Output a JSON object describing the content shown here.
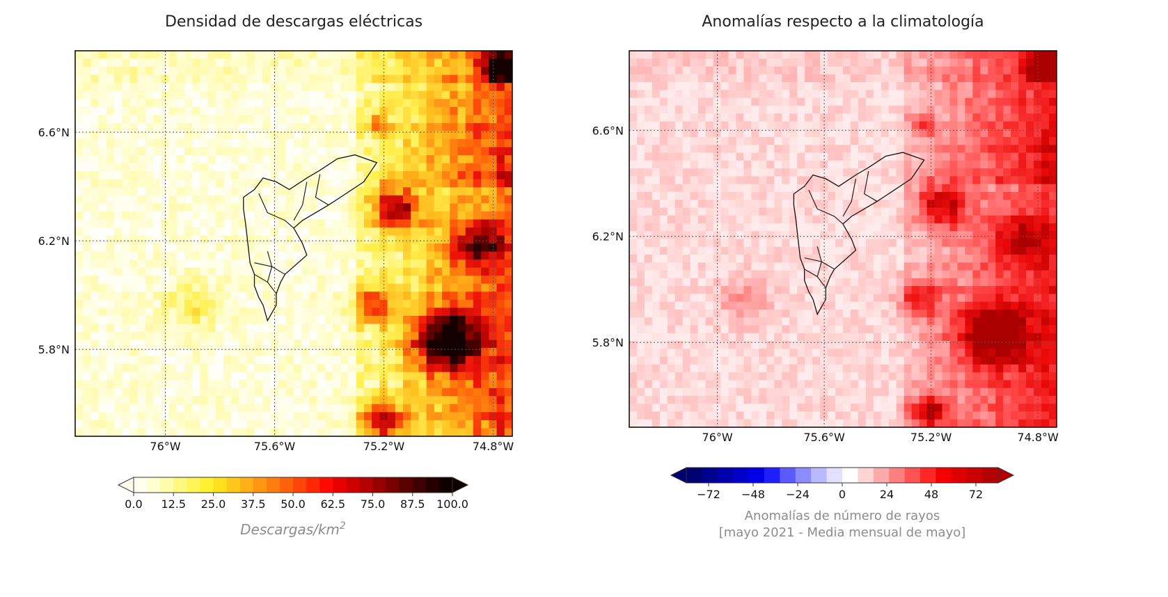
{
  "chart_data": [
    {
      "type": "heatmap",
      "title": "Densidad de descargas eléctricas",
      "xlabel": "",
      "ylabel": "",
      "x_ticks": [
        "76°W",
        "75.6°W",
        "75.2°W",
        "74.8°W"
      ],
      "x_tick_values": [
        -76.0,
        -75.6,
        -75.2,
        -74.8
      ],
      "y_ticks": [
        "6.6°N",
        "6.2°N",
        "5.8°N"
      ],
      "y_tick_values": [
        6.6,
        6.2,
        5.8
      ],
      "xlim": [
        -76.33,
        -74.73
      ],
      "ylim": [
        5.48,
        6.9
      ],
      "grid": true,
      "colormap": "hot_r",
      "colorbar": {
        "ticks": [
          "0.0",
          "12.5",
          "25.0",
          "37.5",
          "50.0",
          "62.5",
          "75.0",
          "87.5",
          "100.0"
        ],
        "range": [
          0,
          100
        ],
        "label": "Descargas/km",
        "label_superscript": "2",
        "extend": "both",
        "colors": [
          "#fffff0",
          "#ffffd0",
          "#fffcaa",
          "#fff880",
          "#fff458",
          "#fff030",
          "#ffe01e",
          "#ffc81a",
          "#ffb016",
          "#ff9612",
          "#ff7c0e",
          "#ff620a",
          "#ff4608",
          "#ff2806",
          "#ff0a04",
          "#ea0000",
          "#d00000",
          "#b40000",
          "#960000",
          "#780000",
          "#5a0000",
          "#3e0000",
          "#240000",
          "#100000"
        ]
      },
      "features": [
        "municipal boundaries outline (black)",
        "lightning density higher in the east"
      ]
    },
    {
      "type": "heatmap",
      "title": "Anomalías respecto a la climatología",
      "xlabel": "",
      "ylabel": "",
      "x_ticks": [
        "76°W",
        "75.6°W",
        "75.2°W",
        "74.8°W"
      ],
      "x_tick_values": [
        -76.0,
        -75.6,
        -75.2,
        -74.8
      ],
      "y_ticks": [
        "6.6°N",
        "6.2°N",
        "5.8°N"
      ],
      "y_tick_values": [
        6.6,
        6.2,
        5.8
      ],
      "xlim": [
        -76.33,
        -74.73
      ],
      "ylim": [
        5.48,
        6.9
      ],
      "grid": true,
      "colormap": "seismic",
      "colorbar": {
        "ticks": [
          "−72",
          "−48",
          "−24",
          "0",
          "24",
          "48",
          "72"
        ],
        "range": [
          -84,
          84
        ],
        "label_line1": "Anomalías de número de rayos",
        "label_line2": "[mayo 2021  - Media mensual de mayo]",
        "extend": "both",
        "colors": [
          "#00006e",
          "#00008e",
          "#0000aa",
          "#0000c8",
          "#0000e6",
          "#1e1eff",
          "#5a5aff",
          "#8c8cff",
          "#b9b9ff",
          "#e1e1ff",
          "#ffffff",
          "#ffd4d4",
          "#ffaaaa",
          "#ff7e7e",
          "#ff5252",
          "#ff2626",
          "#f50000",
          "#dc0000",
          "#c80000",
          "#b40000"
        ]
      },
      "features": [
        "municipal boundaries outline (black)",
        "positive anomalies concentrated in the east"
      ]
    }
  ]
}
